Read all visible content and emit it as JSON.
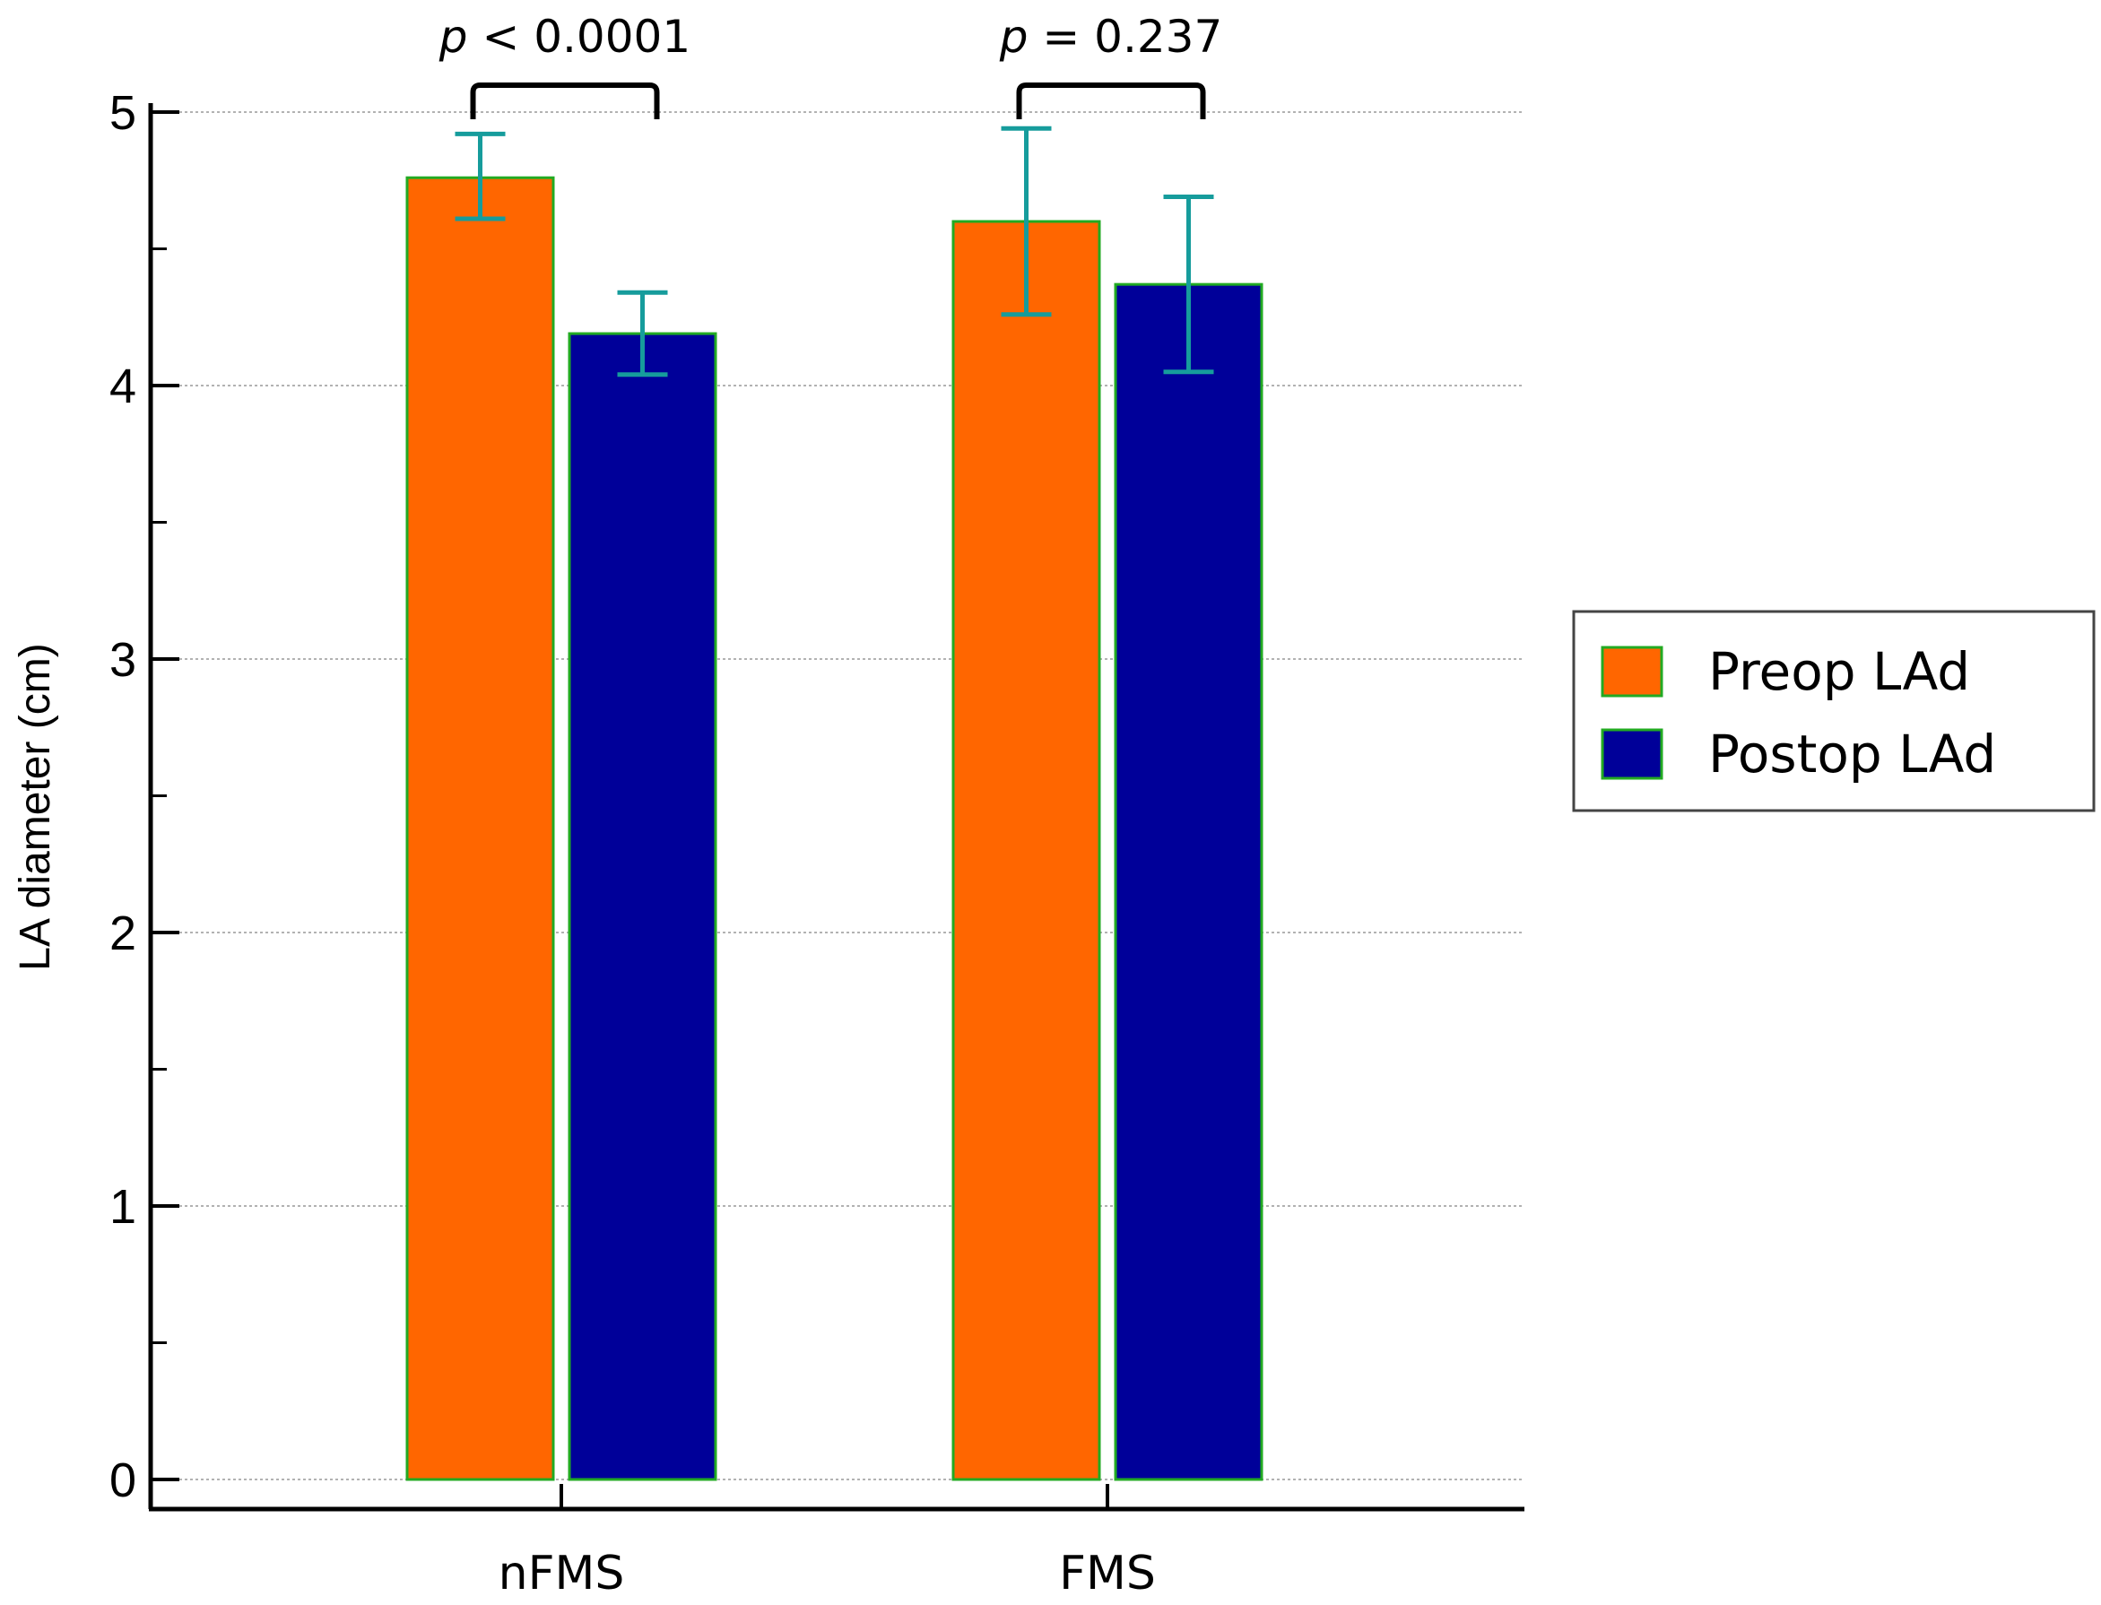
{
  "chart_data": {
    "type": "bar",
    "categories": [
      "nFMS",
      "FMS"
    ],
    "series": [
      {
        "name": "Preop LAd",
        "values": [
          4.76,
          4.6
        ],
        "error_low": [
          4.61,
          4.26
        ],
        "error_high": [
          4.92,
          4.94
        ],
        "color": "#FF6600"
      },
      {
        "name": "Postop LAd",
        "values": [
          4.19,
          4.37
        ],
        "error_low": [
          4.04,
          4.05
        ],
        "error_high": [
          4.34,
          4.69
        ],
        "color": "#000099"
      }
    ],
    "bar_edge_color": "#22AA22",
    "error_bar_color": "#169C9C",
    "xlabel": "",
    "ylabel": "LA diameter (cm)",
    "ylim": [
      0,
      5.1
    ],
    "yticks": [
      "0",
      "1",
      "2",
      "3",
      "4",
      "5"
    ],
    "grid": true,
    "legend_position": "right",
    "annotations": [
      {
        "category": "nFMS",
        "p_symbol": "p",
        "p_rest": " < 0.0001"
      },
      {
        "category": "FMS",
        "p_symbol": "p",
        "p_rest": " = 0.237"
      }
    ]
  }
}
